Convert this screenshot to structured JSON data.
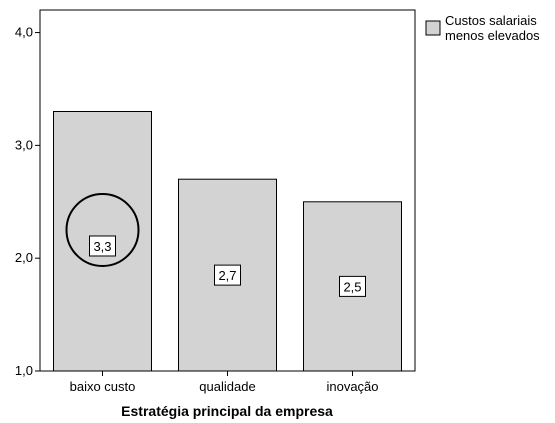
{
  "chart_data": {
    "type": "bar",
    "title": "",
    "xlabel": "Estratégia principal da empresa",
    "ylabel": "",
    "categories": [
      "baixo custo",
      "qualidade",
      "inovação"
    ],
    "series": [
      {
        "name": "Custos salariais menos elevados",
        "values": [
          3.3,
          2.7,
          2.5
        ],
        "labels": [
          "3,3",
          "2,7",
          "2,5"
        ]
      }
    ],
    "ylim": [
      1.0,
      4.2
    ],
    "yticks": [
      1.0,
      2.0,
      3.0,
      4.0
    ],
    "ytick_labels": [
      "1,0",
      "2,0",
      "3,0",
      "4,0"
    ],
    "legend": {
      "position": "top-right",
      "lines": [
        "Custos salariais",
        "menos elevados"
      ]
    },
    "annotation": {
      "type": "circle",
      "category_index": 0,
      "value": 2.25
    },
    "grid": false,
    "colors": {
      "bar_fill": "#d3d3d3",
      "bar_stroke": "#000000",
      "background": "#ffffff"
    }
  }
}
